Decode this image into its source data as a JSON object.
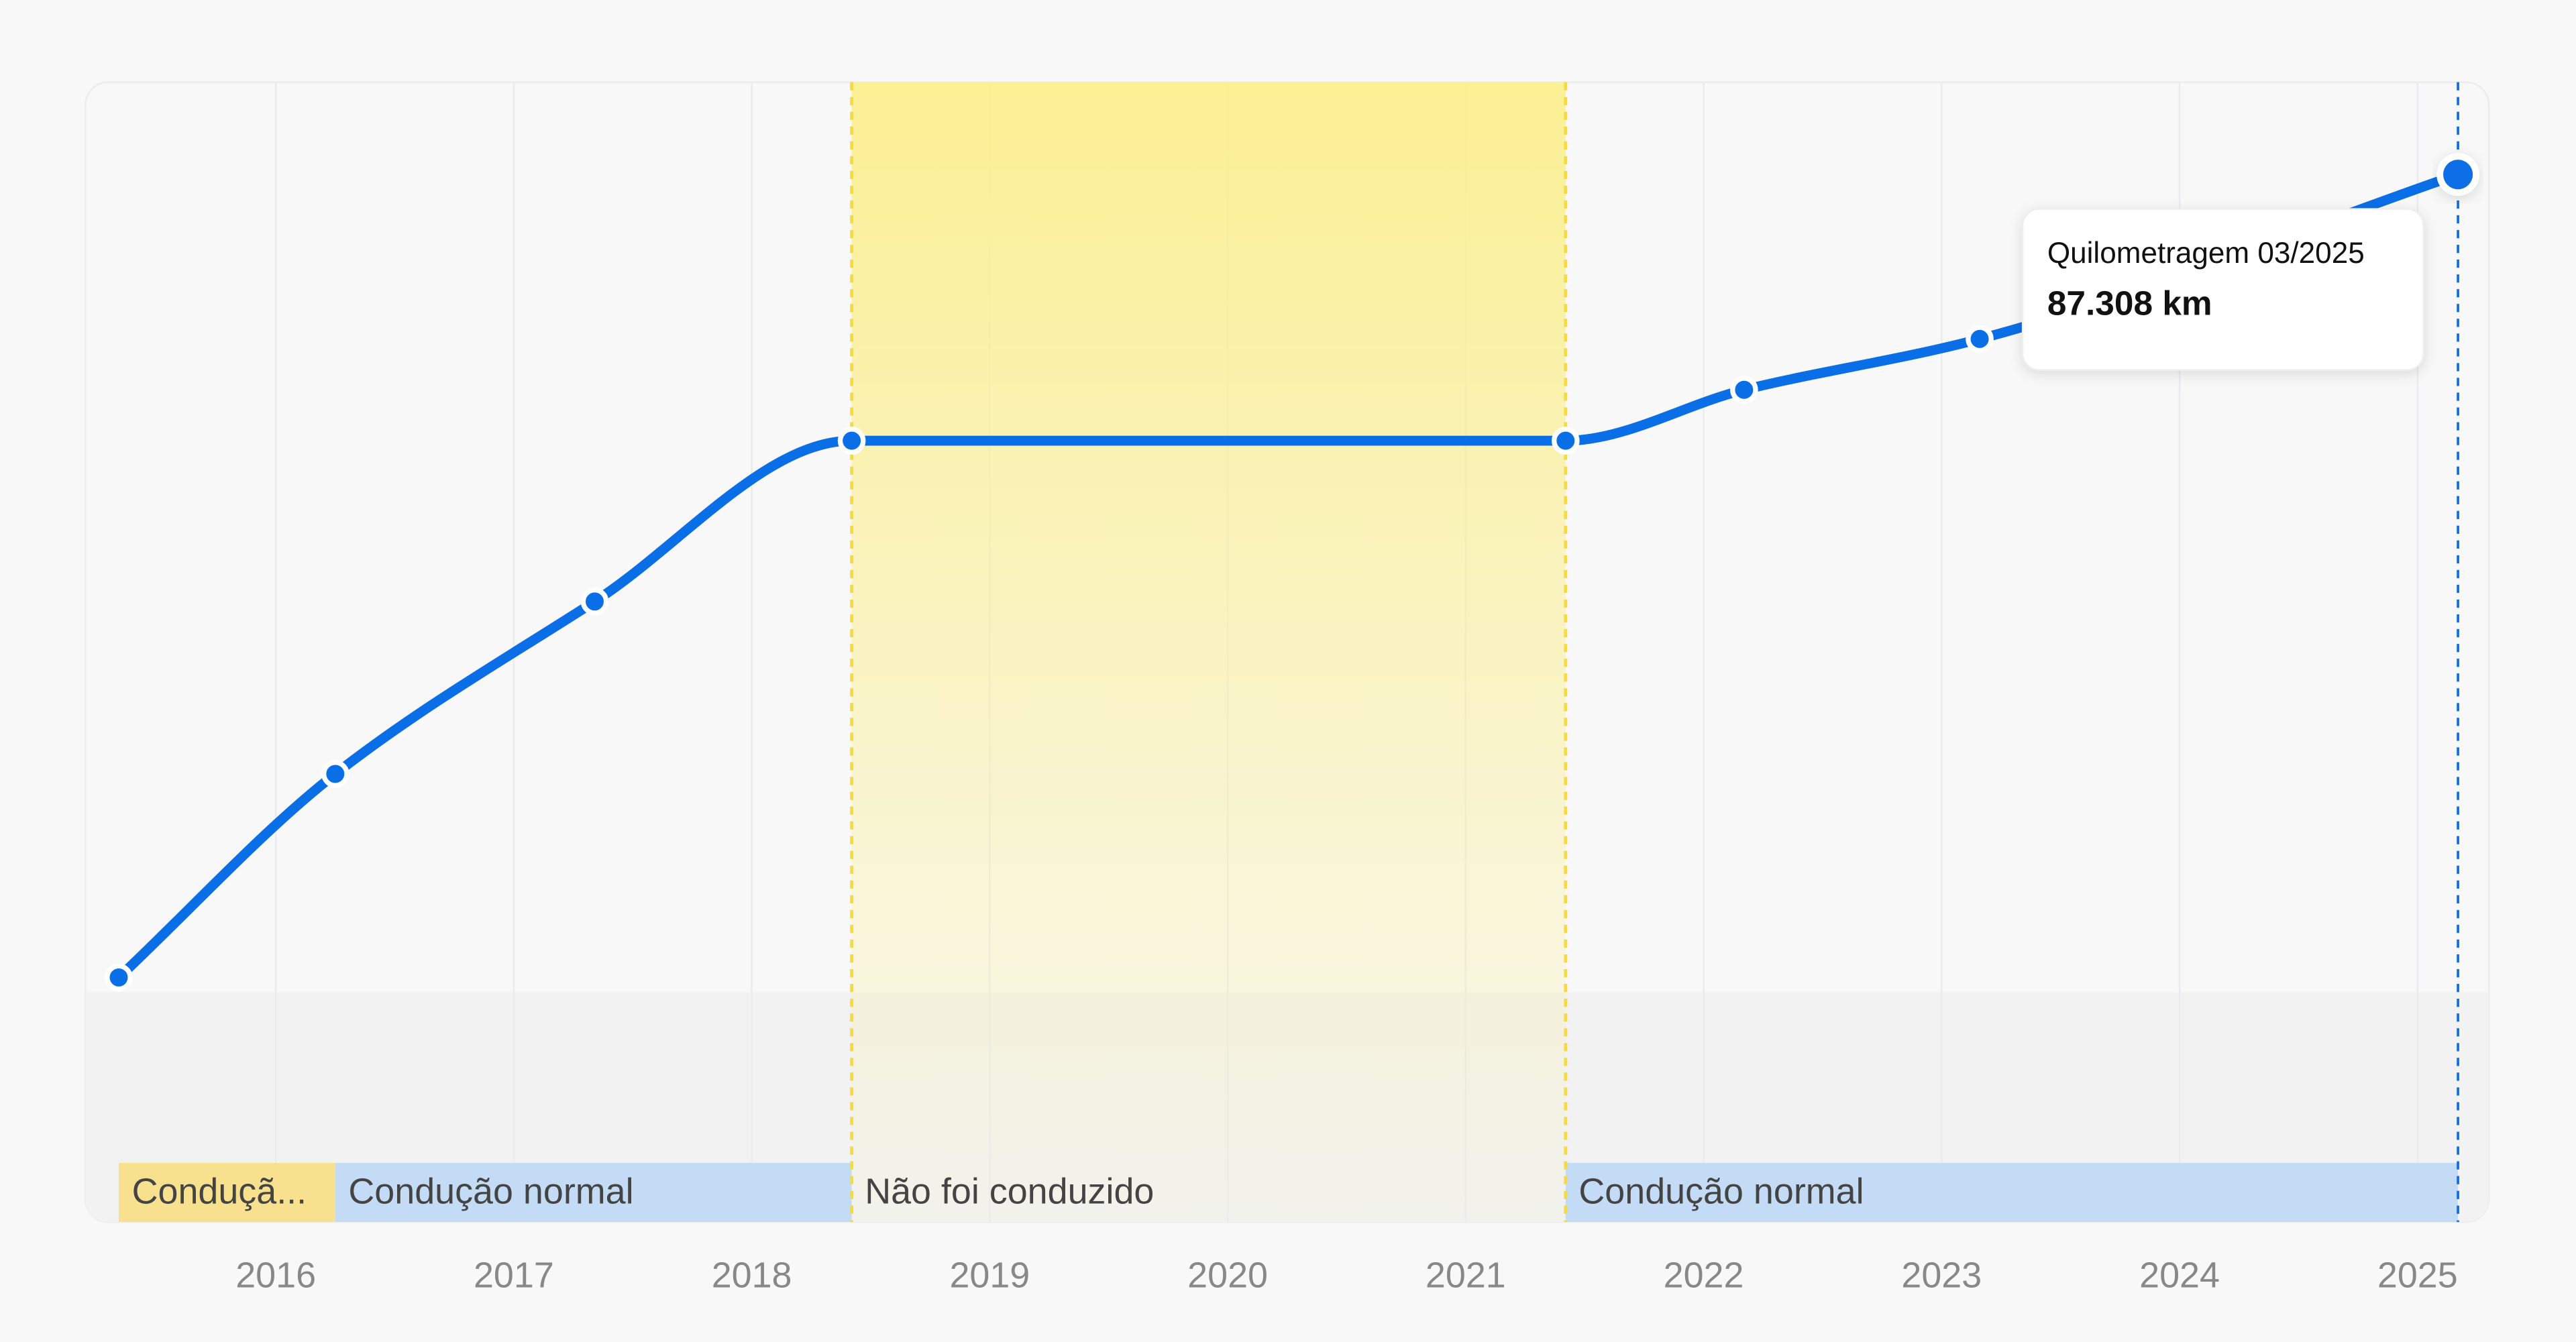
{
  "chart_data": {
    "type": "line",
    "x": [
      2015.34,
      2016.25,
      2017.34,
      2018.42,
      2021.42,
      2022.17,
      2023.16,
      2025.17
    ],
    "series": [
      {
        "name": "Quilometragem",
        "color": "#0a6ee6",
        "values": [
          20385,
          37350,
          51720,
          65120,
          65120,
          69360,
          73600,
          87308
        ],
        "value_labels": [
          null,
          null,
          null,
          null,
          null,
          null,
          null,
          "87.308 km"
        ]
      }
    ],
    "tooltip": {
      "title": "Quilometragem 03/2025",
      "point": 7
    },
    "xlim": [
      2015.2,
      2025.3
    ],
    "xticks": [
      2016,
      2017,
      2018,
      2019,
      2020,
      2021,
      2022,
      2023,
      2024,
      2025
    ],
    "ylim": [
      0,
      95000
    ],
    "grid": true,
    "periods": [
      {
        "label": "Conduçã...",
        "start": 2015.34,
        "end": 2016.25,
        "color": "#f7e18e",
        "highlight": false
      },
      {
        "label": "Condução normal",
        "start": 2016.25,
        "end": 2018.42,
        "color": "#c3dbf5",
        "highlight": false
      },
      {
        "label": "Não foi conduzido",
        "start": 2018.42,
        "end": 2021.42,
        "color": "#fbef8e",
        "highlight": true
      },
      {
        "label": "Condução normal",
        "start": 2021.42,
        "end": 2025.17,
        "color": "#c3dbf5",
        "highlight": false
      }
    ]
  }
}
